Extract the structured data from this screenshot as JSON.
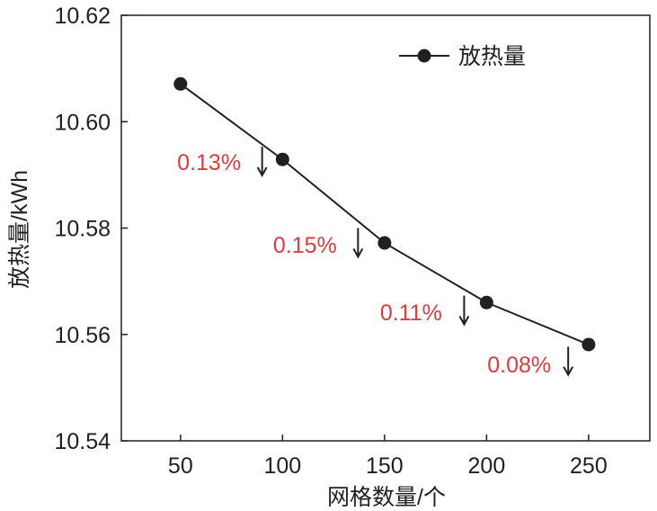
{
  "chart_data": {
    "type": "line",
    "title": "",
    "xlabel": "网格数量/个",
    "ylabel": "放热量/kWh",
    "xlim": [
      21,
      280
    ],
    "ylim": [
      10.54,
      10.62
    ],
    "xticks": [
      50,
      100,
      150,
      200,
      250
    ],
    "yticks": [
      10.54,
      10.56,
      10.58,
      10.6,
      10.62
    ],
    "ytick_labels": [
      "10.54",
      "10.56",
      "10.58",
      "10.60",
      "10.62"
    ],
    "grid": false,
    "legend_position": "top-right",
    "series": [
      {
        "name": "放热量",
        "color": "#231f20",
        "x": [
          50,
          100,
          150,
          200,
          250
        ],
        "y": [
          10.6071,
          10.5929,
          10.5772,
          10.566,
          10.5581
        ]
      }
    ],
    "annotations": [
      {
        "text": "0.13%",
        "x": 64,
        "y": 10.5924,
        "arrow_x": 90,
        "arrow_from": 10.5953,
        "arrow_to": 10.5899
      },
      {
        "text": "0.15%",
        "x": 111,
        "y": 10.5769,
        "arrow_x": 137,
        "arrow_from": 10.58,
        "arrow_to": 10.5746
      },
      {
        "text": "0.11%",
        "x": 163,
        "y": 10.5642,
        "arrow_x": 189,
        "arrow_from": 10.5673,
        "arrow_to": 10.5619
      },
      {
        "text": "0.08%",
        "x": 216,
        "y": 10.5544,
        "arrow_x": 240,
        "arrow_from": 10.5577,
        "arrow_to": 10.5524
      }
    ],
    "annotation_color": "#e03a3e"
  }
}
